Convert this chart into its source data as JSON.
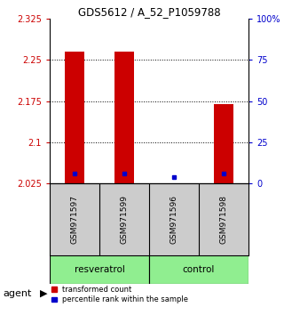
{
  "title": "GDS5612 / A_52_P1059788",
  "samples": [
    "GSM971597",
    "GSM971599",
    "GSM971596",
    "GSM971598"
  ],
  "groups": [
    "resveratrol",
    "resveratrol",
    "control",
    "control"
  ],
  "red_values": [
    2.265,
    2.265,
    2.025,
    2.17
  ],
  "blue_values": [
    2.043,
    2.043,
    2.037,
    2.043
  ],
  "red_base": 2.025,
  "ylim_left": [
    2.025,
    2.325
  ],
  "ylim_right": [
    0,
    100
  ],
  "left_ticks": [
    2.025,
    2.1,
    2.175,
    2.25,
    2.325
  ],
  "right_ticks": [
    0,
    25,
    50,
    75,
    100
  ],
  "right_tick_labels": [
    "0",
    "25",
    "50",
    "75",
    "100%"
  ],
  "bar_width": 0.4,
  "red_color": "#CC0000",
  "blue_color": "#0000CC",
  "left_tick_color": "#CC0000",
  "right_tick_color": "#0000CC",
  "grid_color": "#000000",
  "background_color": "#ffffff",
  "sample_box_color": "#cccccc",
  "group_green": "#90EE90",
  "agent_label": "agent",
  "legend_red_label": "transformed count",
  "legend_blue_label": "percentile rank within the sample"
}
